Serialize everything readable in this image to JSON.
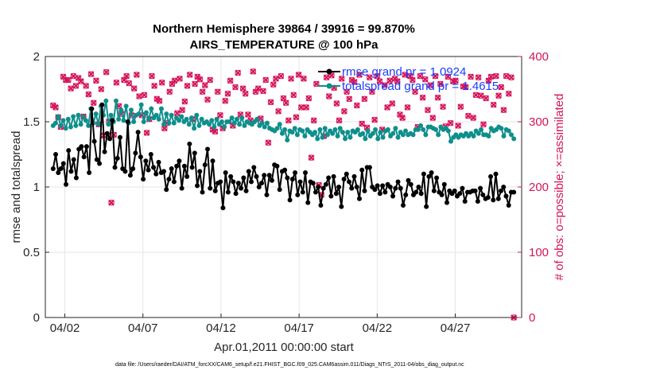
{
  "chart_data": {
    "type": "line",
    "title": "Northern Hemisphere 39864 / 39916 = 99.870%",
    "subtitle": "AIRS_TEMPERATURE @ 100 hPa",
    "xlabel": "Apr.01,2011 00:00:00 start",
    "ylabel": "rmse and totalspread",
    "y2label": "# of obs: o=possible; ×=assimilated",
    "footnote": "data file: /Users/raeder/DAI/ATM_forcXX/CAM6_setup/f.e21.FHIST_BGC.f09_025.CAM6assim.011/Diags_NTrS_2011-04/obs_diag_output.nc",
    "xlim": [
      0.75,
      31.25
    ],
    "ylim": [
      0,
      2
    ],
    "y2lim": [
      0,
      400
    ],
    "grid": true,
    "xticks": [
      2,
      7,
      12,
      17,
      22,
      27
    ],
    "xtick_labels": [
      "04/02",
      "04/07",
      "04/12",
      "04/17",
      "04/22",
      "04/27"
    ],
    "yticks": [
      0,
      0.5,
      1,
      1.5,
      2
    ],
    "ytick_labels": [
      "0",
      "0.5",
      "1",
      "1.5",
      "2"
    ],
    "y2ticks": [
      0,
      100,
      200,
      300,
      400
    ],
    "y2tick_labels": [
      "0",
      "100",
      "200",
      "300",
      "400"
    ],
    "legend_position": "top-right",
    "legend": [
      "rmse grand pr = 1.0924",
      "totalspread grand pr = 1.4615"
    ],
    "colors": {
      "rmse": "#000000",
      "spread": "#0e8f8c",
      "obs": "#d4145a",
      "legend_text": "#1a3cff"
    },
    "series": [
      {
        "name": "rmse grand pr = 1.0924",
        "axis": "left",
        "values": [
          1.14,
          1.25,
          1.11,
          1.14,
          1.18,
          1.02,
          1.28,
          1.12,
          1.21,
          1.07,
          1.29,
          1.31,
          1.23,
          1.31,
          1.11,
          1.6,
          1.35,
          1.21,
          1.18,
          1.63,
          1.27,
          1.41,
          1.37,
          1.51,
          1.15,
          1.22,
          1.38,
          1.14,
          1.12,
          1.5,
          1.09,
          1.14,
          1.26,
          1.42,
          1.23,
          1.06,
          1.2,
          1.13,
          1.25,
          1.15,
          1.1,
          1.19,
          1.11,
          1.12,
          0.98,
          1.06,
          1.14,
          1.04,
          1.16,
          1.2,
          0.99,
          1.16,
          1.08,
          1.33,
          1.15,
          1.26,
          1.01,
          1.12,
          0.96,
          1.17,
          1.29,
          0.99,
          1.2,
          0.97,
          1.03,
          1.04,
          0.84,
          1.11,
          0.96,
          1.08,
          1.04,
          0.95,
          1.03,
          0.99,
          1.07,
          0.97,
          1.12,
          1.04,
          1.15,
          1.08,
          1.0,
          1.03,
          1.09,
          0.94,
          1.09,
          1.05,
          1.17,
          1.16,
          0.98,
          1.12,
          1.13,
          1.07,
          0.9,
          1.06,
          1.11,
          0.94,
          1.04,
          0.96,
          1.11,
          0.88,
          1.04,
          1.03,
          0.96,
          1.0,
          0.86,
          0.99,
          1.02,
          1.07,
          0.93,
          1.08,
          0.95,
          1.0,
          0.85,
          1.06,
          1.1,
          1.04,
          0.99,
          1.08,
          1.0,
          0.91,
          1.13,
          0.97,
          1.15,
          1.15,
          1.0,
          0.98,
          1.01,
          0.95,
          1.01,
          0.96,
          1.02,
          1.0,
          0.93,
          0.99,
          1.04,
          0.99,
          0.86,
          0.94,
          1.05,
          1.02,
          0.94,
          0.96,
          1.0,
          0.95,
          1.1,
          0.85,
          1.08,
          1.11,
          0.97,
          1.07,
          0.96,
          0.94,
          1.02,
          0.88,
          0.97,
          0.95,
          0.97,
          0.93,
          0.95,
          0.99,
          0.89,
          0.96,
          0.96,
          0.97,
          0.97,
          0.89,
          0.99,
          0.94,
          0.91,
          0.92,
          1.08,
          0.9,
          1.1,
          0.91,
          0.97,
          1.0,
          0.93,
          0.86,
          0.96,
          0.96
        ]
      },
      {
        "name": "totalspread grand pr = 1.4615",
        "axis": "left",
        "values": [
          1.47,
          1.49,
          1.54,
          1.47,
          1.51,
          1.45,
          1.52,
          1.46,
          1.54,
          1.47,
          1.55,
          1.48,
          1.54,
          1.51,
          1.47,
          1.6,
          1.49,
          1.56,
          1.48,
          1.62,
          1.55,
          1.66,
          1.48,
          1.55,
          1.5,
          1.66,
          1.52,
          1.59,
          1.51,
          1.62,
          1.49,
          1.59,
          1.5,
          1.55,
          1.56,
          1.63,
          1.5,
          1.57,
          1.52,
          1.6,
          1.53,
          1.55,
          1.52,
          1.6,
          1.48,
          1.56,
          1.49,
          1.55,
          1.49,
          1.53,
          1.51,
          1.54,
          1.5,
          1.52,
          1.48,
          1.53,
          1.45,
          1.55,
          1.47,
          1.52,
          1.49,
          1.5,
          1.48,
          1.51,
          1.46,
          1.52,
          1.48,
          1.5,
          1.46,
          1.5,
          1.5,
          1.53,
          1.49,
          1.52,
          1.48,
          1.53,
          1.47,
          1.5,
          1.49,
          1.48,
          1.5,
          1.52,
          1.47,
          1.49,
          1.46,
          1.49,
          1.45,
          1.44,
          1.43,
          1.45,
          1.48,
          1.41,
          1.44,
          1.36,
          1.43,
          1.42,
          1.45,
          1.4,
          1.44,
          1.43,
          1.39,
          1.44,
          1.42,
          1.4,
          1.42,
          1.37,
          1.44,
          1.38,
          1.45,
          1.4,
          1.43,
          1.41,
          1.44,
          1.39,
          1.45,
          1.42,
          1.37,
          1.42,
          1.38,
          1.43,
          1.42,
          1.44,
          1.4,
          1.41,
          1.37,
          1.43,
          1.39,
          1.41,
          1.44,
          1.37,
          1.42,
          1.38,
          1.43,
          1.44,
          1.39,
          1.41,
          1.45,
          1.38,
          1.42,
          1.4,
          1.43,
          1.4,
          1.41,
          1.4,
          1.44,
          1.44,
          1.47,
          1.44,
          1.4,
          1.46,
          1.46,
          1.45,
          1.44,
          1.4,
          1.46,
          1.44,
          1.45,
          1.43,
          1.35,
          1.38,
          1.4,
          1.38,
          1.4,
          1.39,
          1.41,
          1.39,
          1.41,
          1.39,
          1.43,
          1.41,
          1.44,
          1.4,
          1.4,
          1.39,
          1.45,
          1.43,
          1.44,
          1.46,
          1.45,
          1.39,
          1.44,
          1.43,
          1.4,
          1.37
        ]
      },
      {
        "name": "",
        "axis": "right",
        "marker": "o",
        "values": [
          325,
          322,
          307,
          292,
          369,
          364,
          364,
          351,
          370,
          355,
          367,
          362,
          308,
          355,
          342,
          373,
          329,
          363,
          296,
          350,
          279,
          376,
          300,
          176,
          280,
          360,
          324,
          312,
          364,
          370,
          359,
          310,
          351,
          372,
          339,
          310,
          341,
          283,
          304,
          370,
          355,
          335,
          332,
          360,
          290,
          298,
          346,
          358,
          363,
          313,
          366,
          318,
          331,
          355,
          372,
          304,
          358,
          369,
          365,
          346,
          356,
          334,
          364,
          288,
          285,
          346,
          310,
          290,
          332,
          343,
          363,
          294,
          353,
          375,
          311,
          351,
          343,
          311,
          302,
          377,
          346,
          351,
          305,
          347,
          364,
          268,
          330,
          357,
          366,
          316,
          370,
          336,
          329,
          302,
          366,
          341,
          307,
          372,
          322,
          366,
          322,
          336,
          245,
          302,
          358,
          203,
          188,
          278,
          368,
          339,
          371,
          352,
          328,
          302,
          366,
          316,
          346,
          335,
          364,
          361,
          325,
          372,
          297,
          335,
          291,
          368,
          346,
          303,
          370,
          362,
          288,
          356,
          322,
          363,
          328,
          366,
          362,
          311,
          306,
          372,
          322,
          370,
          364,
          346,
          292,
          370,
          337,
          365,
          318,
          356,
          306,
          370,
          337,
          358,
          323,
          293,
          369,
          298,
          362,
          363,
          294,
          323,
          354,
          353,
          309,
          369,
          306,
          341,
          368,
          340,
          296,
          336,
          363,
          369,
          326,
          370,
          340,
          353,
          318,
          370,
          343,
          368,
          0
        ]
      },
      {
        "name": "",
        "axis": "right",
        "marker": "×",
        "values": [
          325,
          322,
          307,
          292,
          369,
          364,
          364,
          351,
          370,
          355,
          367,
          362,
          308,
          355,
          342,
          373,
          329,
          363,
          296,
          350,
          279,
          376,
          300,
          176,
          280,
          360,
          324,
          312,
          364,
          370,
          359,
          310,
          351,
          372,
          339,
          310,
          341,
          283,
          304,
          370,
          355,
          335,
          332,
          360,
          290,
          298,
          346,
          358,
          363,
          313,
          366,
          318,
          331,
          355,
          372,
          304,
          358,
          369,
          365,
          346,
          356,
          334,
          364,
          288,
          285,
          346,
          310,
          290,
          332,
          343,
          363,
          294,
          353,
          375,
          311,
          351,
          343,
          311,
          302,
          377,
          346,
          351,
          305,
          347,
          364,
          268,
          330,
          357,
          366,
          316,
          370,
          336,
          329,
          302,
          366,
          341,
          307,
          372,
          322,
          366,
          322,
          336,
          245,
          302,
          358,
          203,
          188,
          278,
          368,
          339,
          371,
          352,
          328,
          302,
          366,
          316,
          346,
          335,
          364,
          361,
          325,
          372,
          297,
          335,
          291,
          368,
          346,
          303,
          370,
          362,
          288,
          356,
          322,
          363,
          328,
          366,
          362,
          311,
          306,
          372,
          322,
          370,
          364,
          346,
          292,
          370,
          337,
          365,
          318,
          356,
          306,
          370,
          337,
          358,
          323,
          293,
          369,
          298,
          362,
          363,
          294,
          323,
          354,
          353,
          309,
          369,
          306,
          341,
          368,
          340,
          296,
          336,
          363,
          369,
          326,
          370,
          340,
          353,
          318,
          370,
          343,
          368,
          0
        ]
      }
    ]
  }
}
